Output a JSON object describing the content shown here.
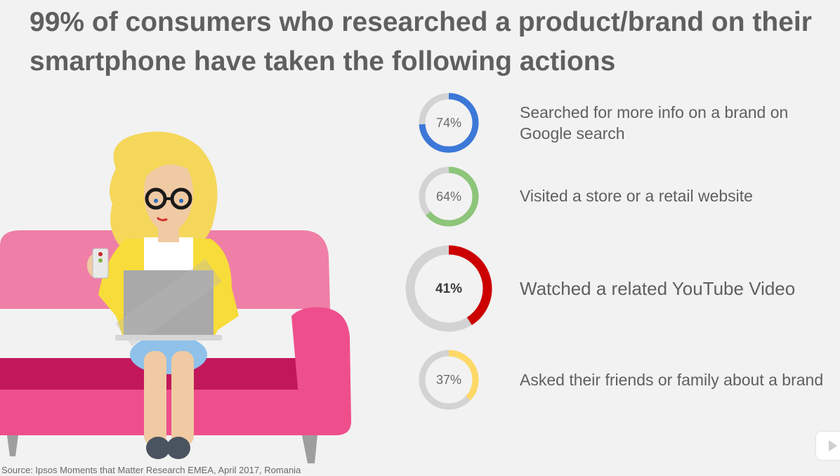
{
  "title": {
    "line1": "99% of consumers who researched a product/brand on their",
    "line2": "smartphone have taken the following actions"
  },
  "source": "Source: Ipsos Moments that Matter Research EMEA, April 2017, Romania",
  "chart_data": {
    "type": "pie",
    "donut": true,
    "title": "99% of consumers who researched a product/brand on their smartphone have taken the following actions",
    "items": [
      {
        "percent": 74,
        "value_label": "74%",
        "label_lines": [
          "Searched for more info on a brand on",
          "Google search"
        ],
        "color": "#3c78d8"
      },
      {
        "percent": 64,
        "value_label": "64%",
        "label_lines": [
          "Visited a store or a retail website"
        ],
        "color": "#8dc57a"
      },
      {
        "percent": 41,
        "value_label": "41%",
        "label_lines": [
          "Watched a related YouTube Video"
        ],
        "color": "#cc0000"
      },
      {
        "percent": 37,
        "value_label": "37%",
        "label_lines": [
          "Asked their friends or family about a brand"
        ],
        "color": "#ffd966"
      }
    ],
    "track_color": "#d3d3d3"
  },
  "colors": {
    "background": "#f2f2f2",
    "title_text": "#5f5f5f",
    "sofa": "#ef6b9c",
    "sofa_seat": "#c2185b",
    "cardigan": "#f7dc3a",
    "hair": "#f5d75a",
    "laptop": "#a9a9a9",
    "skirt": "#8fc1e9"
  }
}
